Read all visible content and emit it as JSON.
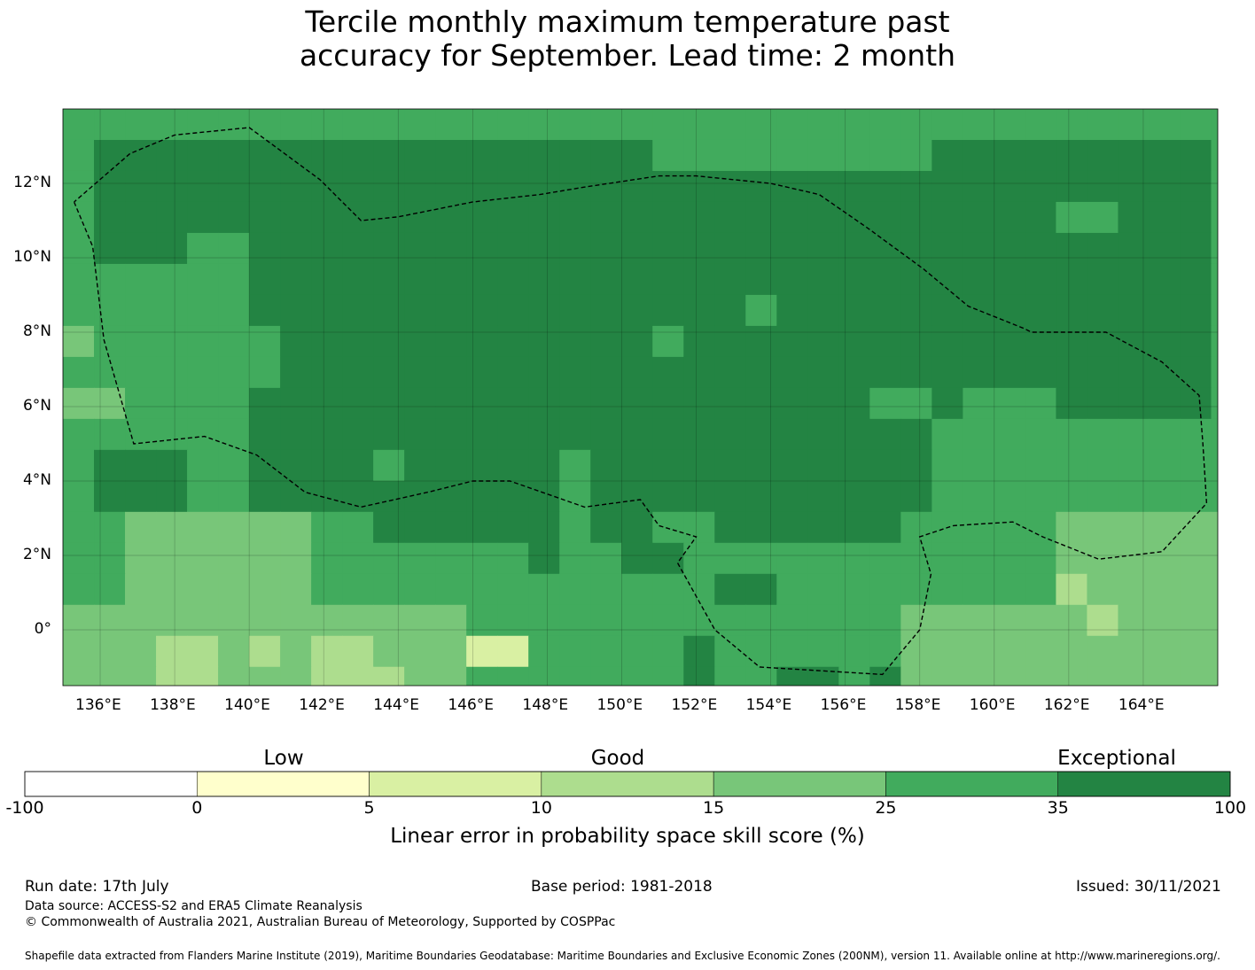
{
  "title_line1": "Tercile monthly maximum temperature past",
  "title_line2": "accuracy for September. Lead time: 2 month",
  "map": {
    "lon_range": [
      135.0,
      166.0
    ],
    "lat_range": [
      -1.5,
      14.0
    ],
    "lon_ticks": [
      {
        "value": 136,
        "label": "136°E"
      },
      {
        "value": 138,
        "label": "138°E"
      },
      {
        "value": 140,
        "label": "140°E"
      },
      {
        "value": 142,
        "label": "142°E"
      },
      {
        "value": 144,
        "label": "144°E"
      },
      {
        "value": 146,
        "label": "146°E"
      },
      {
        "value": 148,
        "label": "148°E"
      },
      {
        "value": 150,
        "label": "150°E"
      },
      {
        "value": 152,
        "label": "152°E"
      },
      {
        "value": 154,
        "label": "154°E"
      },
      {
        "value": 156,
        "label": "156°E"
      },
      {
        "value": 158,
        "label": "158°E"
      },
      {
        "value": 160,
        "label": "160°E"
      },
      {
        "value": 162,
        "label": "162°E"
      },
      {
        "value": 164,
        "label": "164°E"
      }
    ],
    "lat_ticks": [
      {
        "value": 12,
        "label": "12°N"
      },
      {
        "value": 10,
        "label": "10°N"
      },
      {
        "value": 8,
        "label": "8°N"
      },
      {
        "value": 6,
        "label": "6°N"
      },
      {
        "value": 4,
        "label": "4°N"
      },
      {
        "value": 2,
        "label": "2°N"
      },
      {
        "value": 0,
        "label": "0°"
      }
    ],
    "eez_boundary_west": [
      [
        135.3,
        11.5
      ],
      [
        135.8,
        10.3
      ],
      [
        136.1,
        7.8
      ],
      [
        136.9,
        5.0
      ],
      [
        138.8,
        5.2
      ],
      [
        140.2,
        4.7
      ],
      [
        141.5,
        3.7
      ],
      [
        143.0,
        3.3
      ],
      [
        144.8,
        3.7
      ],
      [
        146.0,
        4.0
      ],
      [
        147.0,
        4.0
      ],
      [
        149.0,
        3.3
      ],
      [
        150.5,
        3.5
      ],
      [
        151.0,
        2.8
      ],
      [
        152.0,
        2.5
      ],
      [
        151.5,
        1.8
      ],
      [
        152.5,
        0.0
      ],
      [
        153.7,
        -1.0
      ],
      [
        157.0,
        -1.2
      ],
      [
        158.0,
        0.0
      ],
      [
        158.3,
        1.5
      ],
      [
        158.0,
        2.5
      ],
      [
        158.9,
        2.8
      ],
      [
        160.5,
        2.9
      ],
      [
        161.3,
        2.5
      ],
      [
        162.8,
        1.9
      ],
      [
        164.5,
        2.1
      ],
      [
        165.7,
        3.4
      ],
      [
        165.6,
        5.0
      ],
      [
        165.5,
        6.3
      ],
      [
        164.5,
        7.2
      ],
      [
        163.0,
        8.0
      ],
      [
        161.0,
        8.0
      ],
      [
        160.8,
        8.1
      ],
      [
        159.3,
        8.7
      ],
      [
        158.1,
        9.7
      ],
      [
        156.6,
        10.8
      ],
      [
        155.3,
        11.7
      ],
      [
        154.0,
        12.0
      ],
      [
        152.0,
        12.2
      ],
      [
        151.0,
        12.2
      ],
      [
        149.0,
        11.9
      ],
      [
        147.8,
        11.7
      ],
      [
        146.0,
        11.5
      ],
      [
        144.0,
        11.1
      ],
      [
        143.0,
        11.0
      ],
      [
        141.9,
        12.1
      ],
      [
        140.0,
        13.5
      ],
      [
        138.0,
        13.3
      ],
      [
        136.8,
        12.8
      ],
      [
        135.3,
        11.5
      ]
    ],
    "grid_cells": [
      {
        "lon": 149.0,
        "lat": 9.5,
        "cat": "35-100"
      }
    ]
  },
  "colorbar": {
    "section_titles": [
      {
        "label": "Low"
      },
      {
        "label": "Good"
      },
      {
        "label": "Exceptional"
      }
    ],
    "bins": [
      {
        "from": -100,
        "to": 0,
        "color": "#ffffff"
      },
      {
        "from": 0,
        "to": 5,
        "color": "#ffffcc"
      },
      {
        "from": 5,
        "to": 10,
        "color": "#d9f0a3"
      },
      {
        "from": 10,
        "to": 15,
        "color": "#addd8e"
      },
      {
        "from": 15,
        "to": 25,
        "color": "#78c679"
      },
      {
        "from": 25,
        "to": 35,
        "color": "#41ab5d"
      },
      {
        "from": 35,
        "to": 100,
        "color": "#238443"
      }
    ],
    "tick_labels": [
      "-100",
      "0",
      "5",
      "10",
      "15",
      "25",
      "35",
      "100"
    ],
    "caption": "Linear error in probability space skill score (%)"
  },
  "footer": {
    "run_date": "Run date: 17th July",
    "base_period": "Base period: 1981-2018",
    "issued": "Issued: 30/11/2021",
    "data_source": "Data source: ACCESS-S2 and ERA5 Climate Reanalysis",
    "copyright": "© Commonwealth of Australia 2021, Australian Bureau of Meteorology, Supported by COSPPac",
    "shapefile": "Shapefile data extracted from Flanders Marine Institute (2019), Maritime Boundaries Geodatabase: Maritime Boundaries and Exclusive Economic Zones (200NM), version 11. Available online at http://www.marineregions.org/."
  }
}
